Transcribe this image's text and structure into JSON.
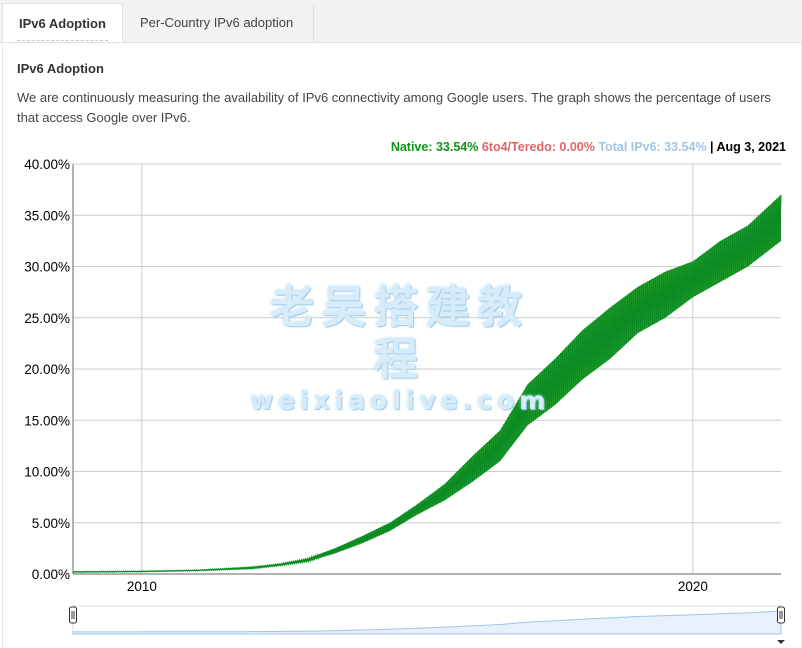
{
  "tabs": [
    {
      "label": "IPv6 Adoption",
      "active": true
    },
    {
      "label": "Per-Country IPv6 adoption",
      "active": false
    }
  ],
  "heading": "IPv6 Adoption",
  "description": "We are continuously measuring the availability of IPv6 connectivity among Google users. The graph shows the percentage of users that access Google over IPv6.",
  "legend": {
    "native_label": "Native: 33.54%",
    "teredo_label": "6to4/Teredo: 0.00%",
    "total_label": "Total IPv6: 33.54%",
    "separator": "|",
    "date_label": "Aug 3, 2021",
    "colors": {
      "native": "#109618",
      "teredo": "#e06666",
      "total": "#9fc5e8"
    }
  },
  "watermark": {
    "line1": "老吴搭建教程",
    "line2": "weixiaolive.com"
  },
  "chart_data": {
    "type": "area",
    "title": "",
    "xlabel": "",
    "ylabel": "",
    "x_range": [
      2008.75,
      2021.6
    ],
    "ylim": [
      0,
      40
    ],
    "y_ticks": [
      "0.00%",
      "5.00%",
      "10.00%",
      "15.00%",
      "20.00%",
      "25.00%",
      "30.00%",
      "35.00%",
      "40.00%"
    ],
    "x_ticks": [
      {
        "label": "2010",
        "value": 2010.0
      },
      {
        "label": "2020",
        "value": 2020.0
      }
    ],
    "grid": true,
    "series": [
      {
        "name": "Native",
        "color": "#109618",
        "x": [
          2008.75,
          2009.5,
          2010.0,
          2011.0,
          2012.0,
          2012.5,
          2013.0,
          2013.5,
          2014.0,
          2014.5,
          2015.0,
          2015.5,
          2016.0,
          2016.5,
          2017.0,
          2017.5,
          2018.0,
          2018.5,
          2019.0,
          2019.5,
          2020.0,
          2020.5,
          2021.0,
          2021.6
        ],
        "low": [
          0.15,
          0.18,
          0.2,
          0.3,
          0.5,
          0.8,
          1.2,
          2.0,
          3.0,
          4.2,
          5.8,
          7.2,
          9.0,
          11.0,
          14.5,
          16.5,
          19.0,
          21.0,
          23.5,
          25.0,
          27.0,
          28.5,
          30.0,
          32.5
        ],
        "high": [
          0.25,
          0.28,
          0.3,
          0.4,
          0.7,
          1.0,
          1.5,
          2.5,
          3.7,
          5.0,
          6.8,
          8.8,
          11.5,
          14.0,
          18.5,
          21.0,
          23.8,
          26.0,
          28.0,
          29.5,
          30.5,
          32.5,
          34.0,
          37.0
        ]
      }
    ]
  }
}
